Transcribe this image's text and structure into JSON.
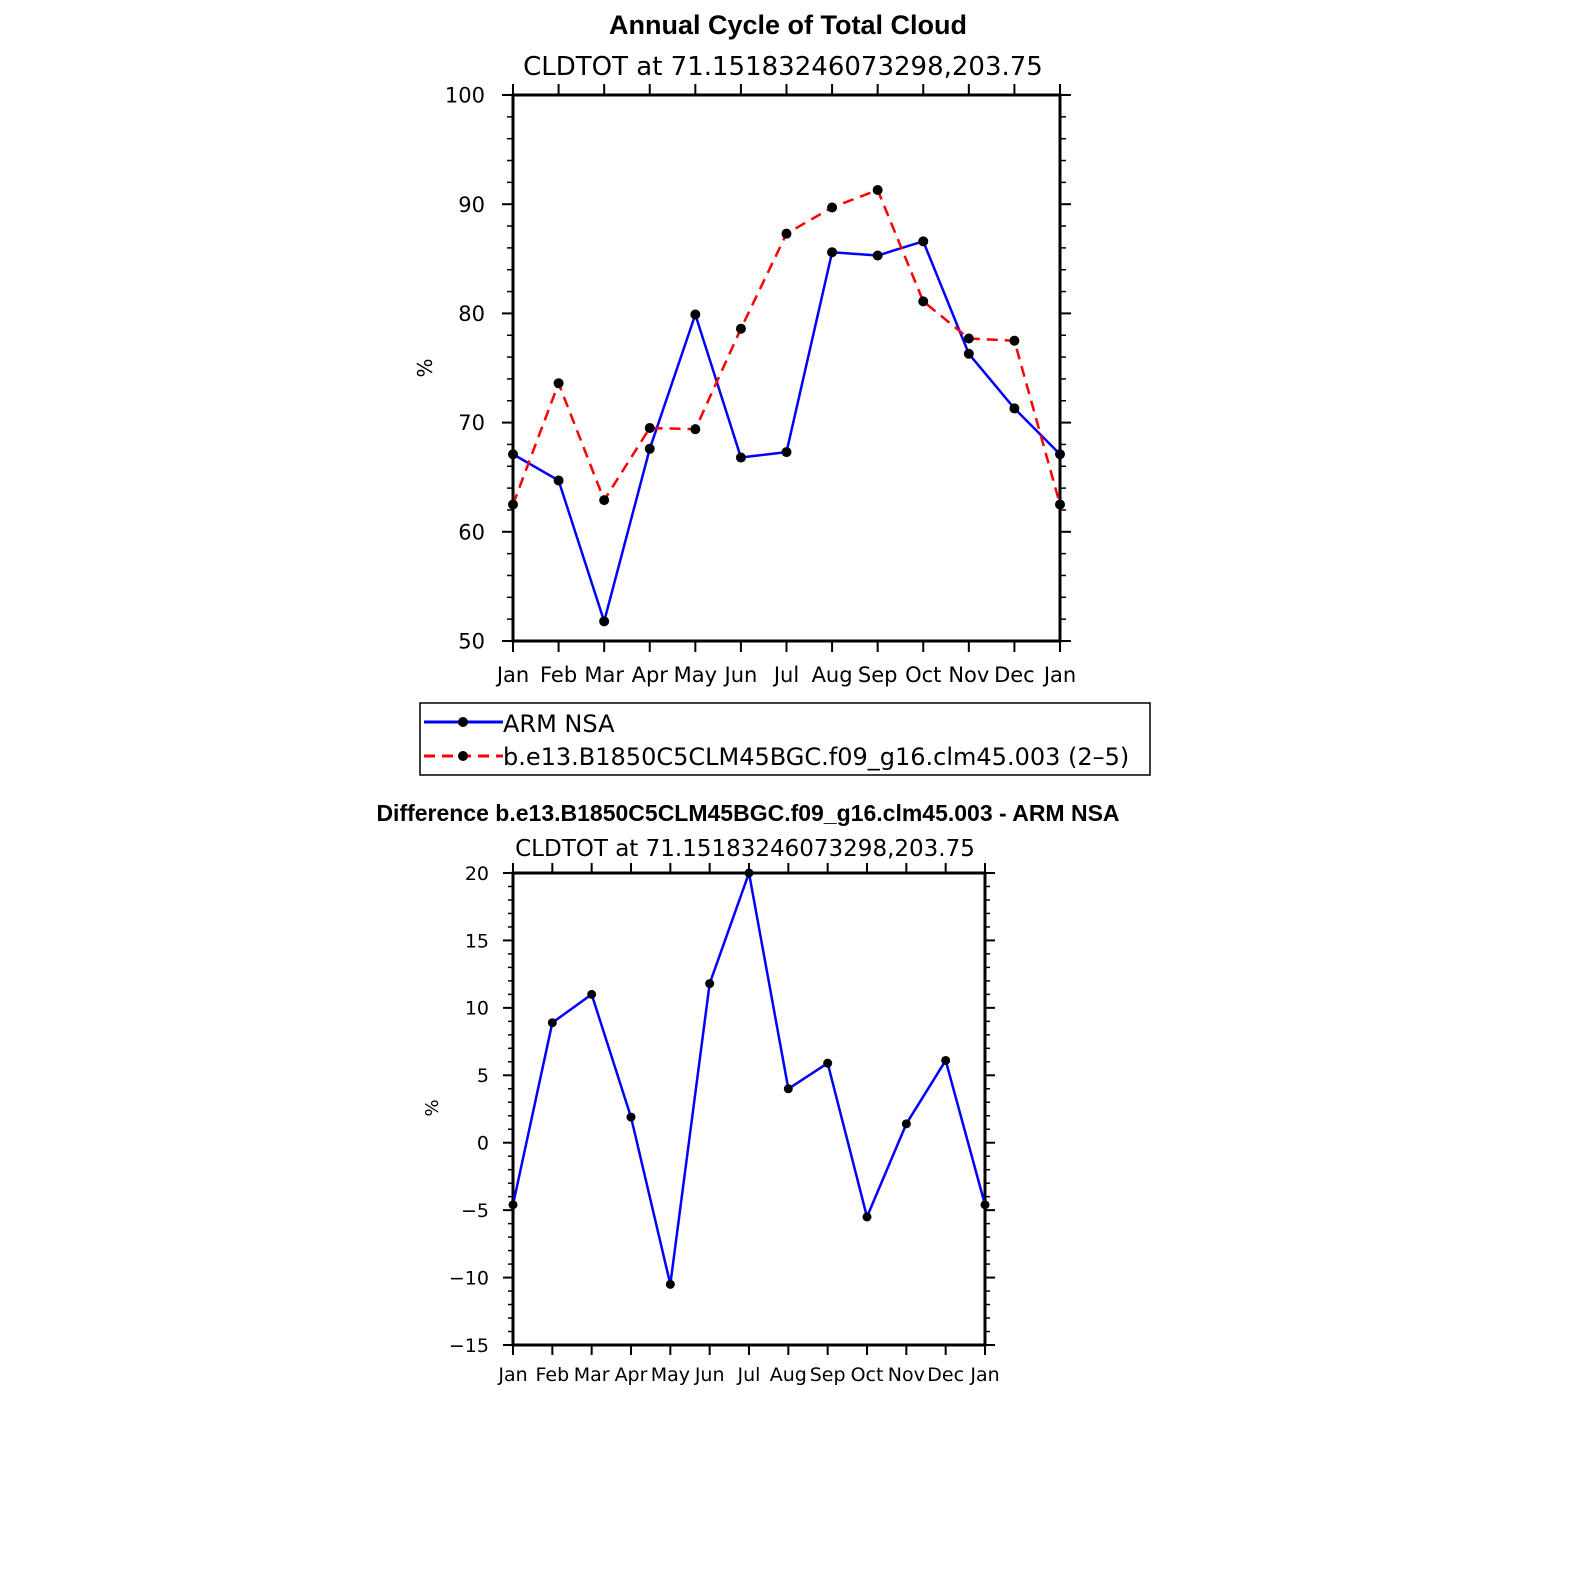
{
  "chart_data": [
    {
      "type": "line",
      "title": "Annual Cycle of Total Cloud",
      "subtitle": "CLDTOT at 71.15183246073298,203.75",
      "xlabel": "",
      "ylabel": "%",
      "categories": [
        "Jan",
        "Feb",
        "Mar",
        "Apr",
        "May",
        "Jun",
        "Jul",
        "Aug",
        "Sep",
        "Oct",
        "Nov",
        "Dec",
        "Jan"
      ],
      "ylim": [
        50,
        100
      ],
      "yticks": [
        50,
        60,
        70,
        80,
        90,
        100
      ],
      "series": [
        {
          "name": "ARM NSA",
          "color": "#0000ff",
          "dash": "solid",
          "values": [
            67.1,
            64.7,
            51.8,
            67.6,
            79.9,
            66.8,
            67.3,
            85.6,
            85.3,
            86.6,
            76.3,
            71.3,
            67.1
          ]
        },
        {
          "name": "b.e13.B1850C5CLM45BGC.f09_g16.clm45.003 (2–5)",
          "color": "#ff0000",
          "dash": "dashed",
          "values": [
            62.5,
            73.6,
            62.9,
            69.5,
            69.4,
            78.6,
            87.3,
            89.7,
            91.3,
            81.1,
            77.7,
            77.5,
            62.5
          ]
        }
      ],
      "legend": "below"
    },
    {
      "type": "line",
      "title": "Difference b.e13.B1850C5CLM45BGC.f09_g16.clm45.003 - ARM NSA",
      "subtitle": "CLDTOT at 71.15183246073298,203.75",
      "xlabel": "",
      "ylabel": "%",
      "categories": [
        "Jan",
        "Feb",
        "Mar",
        "Apr",
        "May",
        "Jun",
        "Jul",
        "Aug",
        "Sep",
        "Oct",
        "Nov",
        "Dec",
        "Jan"
      ],
      "ylim": [
        -15,
        20
      ],
      "yticks": [
        -15,
        -10,
        -5,
        0,
        5,
        10,
        15,
        20
      ],
      "series": [
        {
          "name": "Difference",
          "color": "#0000ff",
          "dash": "solid",
          "values": [
            -4.6,
            8.9,
            11.0,
            1.9,
            -10.5,
            11.8,
            20.0,
            4.0,
            5.9,
            -5.5,
            1.4,
            6.1,
            -4.6
          ]
        }
      ]
    }
  ]
}
